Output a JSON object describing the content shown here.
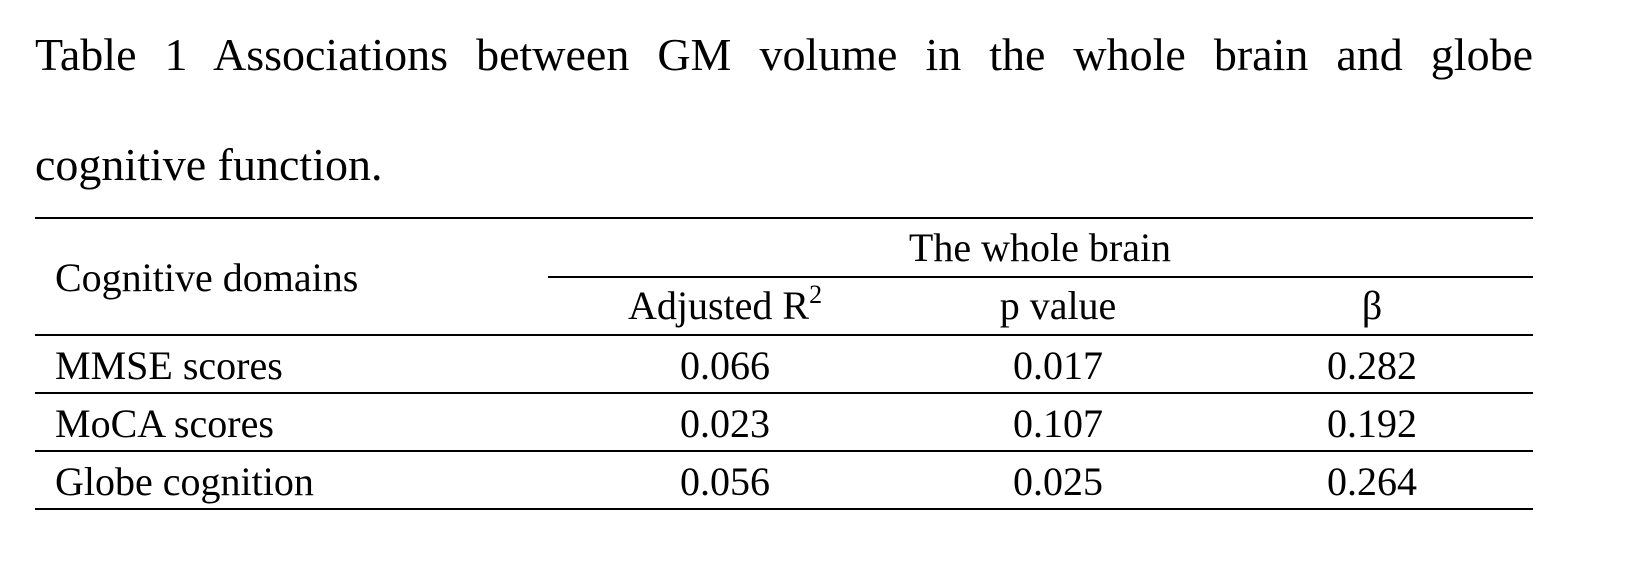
{
  "caption": "Table 1 Associations between GM volume in the whole brain and globe cognitive function.",
  "table": {
    "row_header": "Cognitive domains",
    "group_header": "The whole brain",
    "columns": [
      {
        "text": "Adjusted R",
        "sup": "2"
      },
      {
        "text": "p value"
      },
      {
        "text": "β"
      }
    ],
    "rows": [
      [
        "MMSE scores",
        "0.066",
        "0.017",
        "0.282"
      ],
      [
        "MoCA scores",
        "0.023",
        "0.107",
        "0.192"
      ],
      [
        "Globe cognition",
        "0.056",
        "0.025",
        "0.264"
      ]
    ]
  }
}
